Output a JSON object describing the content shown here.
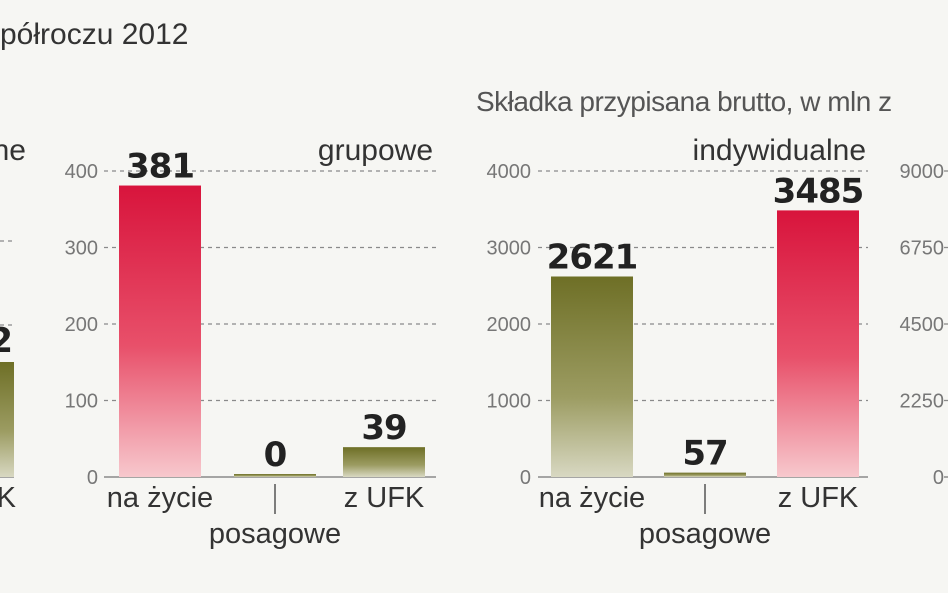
{
  "header": {
    "title_fragment": "półroczu 2012",
    "subtitle_fragment": "Składka przypisana brutto, w mln z"
  },
  "colors": {
    "red": "#d8143c",
    "olive": "#6e6f26",
    "grid": "#8a8a8a"
  },
  "chart_data": [
    {
      "type": "bar",
      "title": "…ne",
      "categories": [
        "",
        "",
        "…K"
      ],
      "values": [
        null,
        null,
        null
      ],
      "data_labels": [
        "",
        "",
        "…2"
      ],
      "note": "partially visible (cropped) panel"
    },
    {
      "type": "bar",
      "title": "grupowe",
      "categories": [
        "na życie",
        "posagowe",
        "z UFK"
      ],
      "values": [
        381,
        0,
        39
      ],
      "data_labels": [
        "381",
        "0",
        "39"
      ],
      "bar_colors": [
        "red",
        "olive",
        "olive"
      ],
      "ylim": [
        0,
        400
      ],
      "yticks": [
        0,
        100,
        200,
        300,
        400
      ],
      "grid": true
    },
    {
      "type": "bar",
      "title": "indywidualne",
      "categories": [
        "na życie",
        "posagowe",
        "z UFK"
      ],
      "values": [
        2621,
        57,
        3485
      ],
      "data_labels": [
        "2621",
        "57",
        "3485"
      ],
      "bar_colors": [
        "olive",
        "olive",
        "red"
      ],
      "ylim": [
        0,
        4000
      ],
      "yticks": [
        0,
        1000,
        2000,
        3000,
        4000
      ],
      "grid": true
    },
    {
      "type": "bar",
      "title": "",
      "categories": [],
      "values": [],
      "ylim": [
        0,
        9000
      ],
      "yticks": [
        0,
        2250,
        4500,
        6750,
        9000
      ],
      "ytick_labels": [
        "0",
        "2250",
        "4500",
        "6750",
        "9000"
      ],
      "note": "partially visible (cropped) panel, only axis shown"
    }
  ]
}
